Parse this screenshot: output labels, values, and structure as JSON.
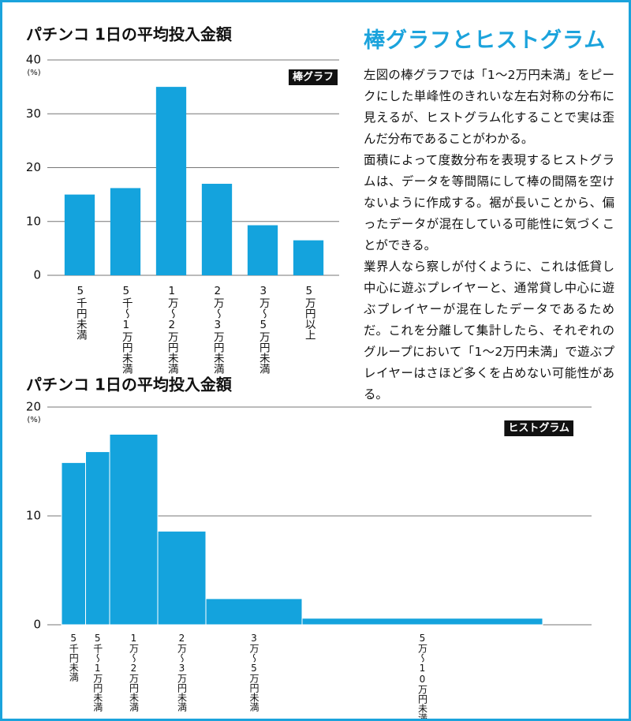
{
  "chart_data": [
    {
      "type": "bar",
      "title": "パチンコ 1日の平均投入金額",
      "y_unit": "(%)",
      "badge": "棒グラフ",
      "categories": [
        "5千円未満",
        "5千〜1万円未満",
        "1万〜2万円未満",
        "2万〜3万円未満",
        "3万〜5万円未満",
        "5万円以上"
      ],
      "values": [
        15,
        16.2,
        35,
        17,
        9.3,
        6.5
      ],
      "color": "#14a3dd",
      "ylim": [
        0,
        40
      ],
      "yticks": [
        0,
        10,
        20,
        30,
        40
      ],
      "grid": true
    },
    {
      "type": "histogram",
      "title": "パチンコ 1日の平均投入金額",
      "y_unit": "(%)",
      "badge": "ヒストグラム",
      "categories": [
        "5千円未満",
        "5千〜1万円未満",
        "1万〜2万円未満",
        "2万〜3万円未満",
        "3万〜5万円未満",
        "5万〜10万円未満"
      ],
      "bins": [
        0,
        0.5,
        1,
        2,
        3,
        5,
        10
      ],
      "values": [
        14.9,
        15.9,
        17.5,
        8.6,
        2.4,
        0.6
      ],
      "color": "#14a3dd",
      "xlim": [
        0,
        11
      ],
      "ylim": [
        0,
        20
      ],
      "yticks": [
        0,
        10,
        20
      ],
      "grid": true
    }
  ],
  "article": {
    "title": "棒グラフとヒストグラム",
    "paragraphs": [
      "左図の棒グラフでは「1〜2万円未満」をピークにした単峰性のきれいな左右対称の分布に見えるが、ヒストグラム化することで実は歪んだ分布であることがわかる。",
      "面積によって度数分布を表現するヒストグラムは、データを等間隔にして棒の間隔を空けないように作成する。裾が長いことから、偏ったデータが混在している可能性に気づくことができる。",
      "業界人なら察しが付くように、これは低貸し中心に遊ぶプレイヤーと、通常貸し中心に遊ぶプレイヤーが混在したデータであるためだ。これを分離して集計したら、それぞれのグループにおいて「1〜2万円未満」で遊ぶプレイヤーはさほど多くを占めない可能性がある。"
    ]
  }
}
